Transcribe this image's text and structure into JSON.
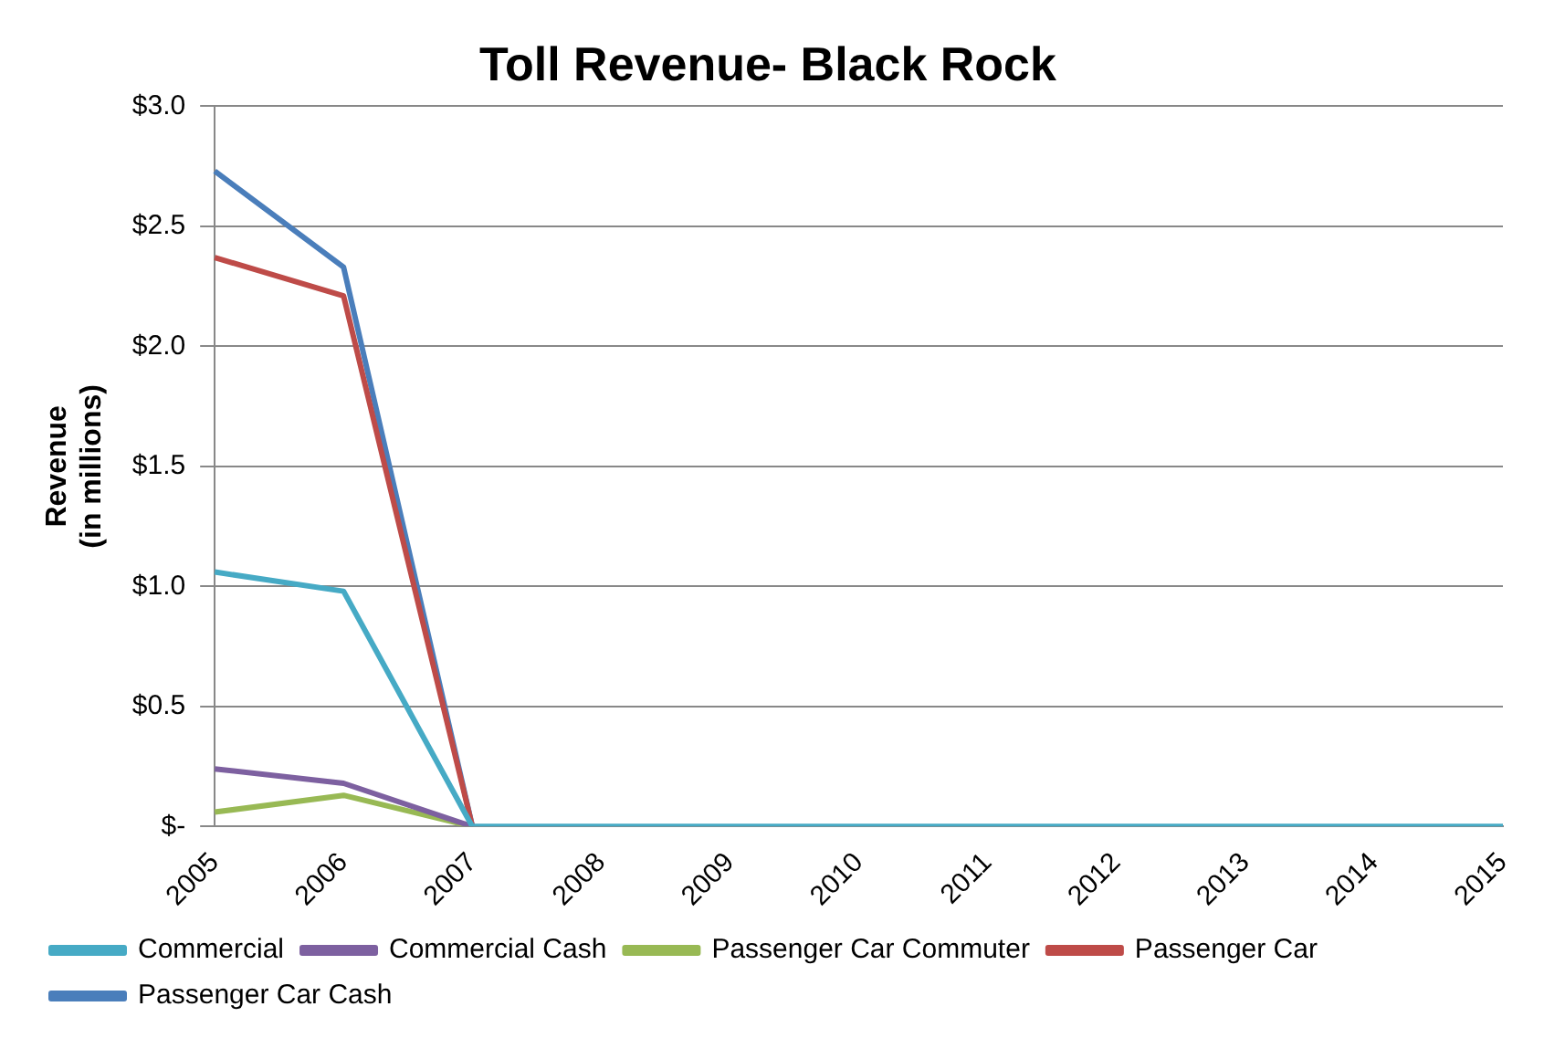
{
  "chart_data": {
    "type": "line",
    "title": "Toll Revenue- Black Rock",
    "ylabel": "Revenue\n(in millions)",
    "categories": [
      "2005",
      "2006",
      "2007",
      "2008",
      "2009",
      "2010",
      "2011",
      "2012",
      "2013",
      "2014",
      "2015"
    ],
    "series": [
      {
        "name": "Passenger Car Cash",
        "color": "#4a7ebb",
        "values": [
          2.73,
          2.33,
          0,
          null,
          null,
          null,
          null,
          null,
          null,
          null,
          null
        ]
      },
      {
        "name": "Passenger Car",
        "color": "#be4b48",
        "values": [
          2.37,
          2.21,
          0,
          null,
          null,
          null,
          null,
          null,
          null,
          null,
          null
        ]
      },
      {
        "name": "Passenger Car Commuter",
        "color": "#98b954",
        "values": [
          0.06,
          0.13,
          0,
          null,
          null,
          null,
          null,
          null,
          null,
          null,
          null
        ]
      },
      {
        "name": "Commercial Cash",
        "color": "#7d60a0",
        "values": [
          0.24,
          0.18,
          0,
          null,
          null,
          null,
          null,
          null,
          null,
          null,
          null
        ]
      },
      {
        "name": "Commercial",
        "color": "#46aac5",
        "values": [
          1.06,
          0.98,
          0,
          0,
          0,
          0,
          0,
          0,
          0,
          0,
          0
        ]
      }
    ],
    "ylim": [
      0,
      3
    ],
    "yticks": [
      {
        "value": 0,
        "label": "$-"
      },
      {
        "value": 0.5,
        "label": "$0.5"
      },
      {
        "value": 1,
        "label": "$1.0"
      },
      {
        "value": 1.5,
        "label": "$1.5"
      },
      {
        "value": 2,
        "label": "$2.0"
      },
      {
        "value": 2.5,
        "label": "$2.5"
      },
      {
        "value": 3,
        "label": "$3.0"
      }
    ],
    "grid": "y",
    "legend": "bottom",
    "marker": "none",
    "line_style": "solid"
  }
}
